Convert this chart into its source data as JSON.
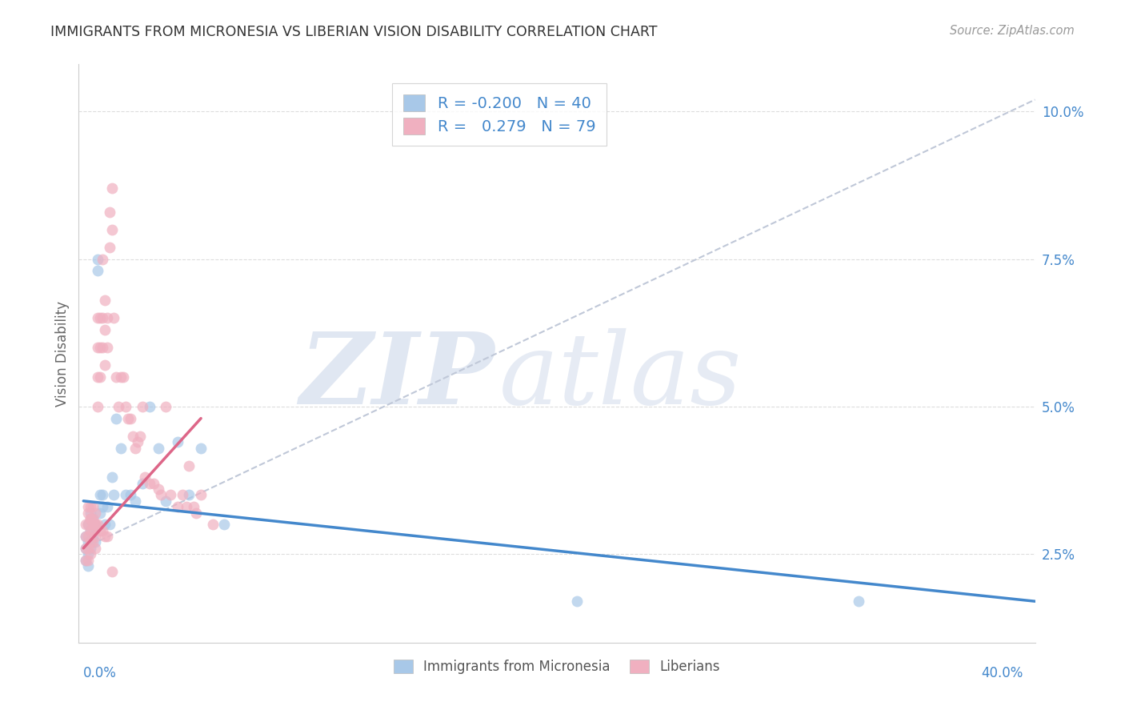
{
  "title": "IMMIGRANTS FROM MICRONESIA VS LIBERIAN VISION DISABILITY CORRELATION CHART",
  "source": "Source: ZipAtlas.com",
  "ylabel": "Vision Disability",
  "yticks": [
    "2.5%",
    "5.0%",
    "7.5%",
    "10.0%"
  ],
  "ytick_vals": [
    0.025,
    0.05,
    0.075,
    0.1
  ],
  "xlim": [
    -0.002,
    0.405
  ],
  "ylim": [
    0.01,
    0.108
  ],
  "blue_color": "#a8c8e8",
  "pink_color": "#f0b0c0",
  "blue_line_color": "#4488cc",
  "pink_line_color": "#dd6688",
  "dashed_line_color": "#c0c8d8",
  "legend_blue_label": "R = -0.200   N = 40",
  "legend_pink_label": "R =   0.279   N = 79",
  "legend_bottom_blue": "Immigrants from Micronesia",
  "legend_bottom_pink": "Liberians",
  "watermark_zip": "ZIP",
  "watermark_atlas": "atlas",
  "blue_scatter_x": [
    0.001,
    0.001,
    0.001,
    0.002,
    0.002,
    0.002,
    0.002,
    0.003,
    0.003,
    0.003,
    0.004,
    0.004,
    0.005,
    0.005,
    0.006,
    0.006,
    0.007,
    0.007,
    0.008,
    0.008,
    0.009,
    0.01,
    0.011,
    0.012,
    0.013,
    0.014,
    0.016,
    0.018,
    0.02,
    0.022,
    0.025,
    0.028,
    0.032,
    0.035,
    0.04,
    0.045,
    0.05,
    0.06,
    0.21,
    0.33
  ],
  "blue_scatter_y": [
    0.028,
    0.026,
    0.024,
    0.03,
    0.027,
    0.025,
    0.023,
    0.032,
    0.029,
    0.026,
    0.031,
    0.028,
    0.03,
    0.027,
    0.075,
    0.073,
    0.035,
    0.032,
    0.035,
    0.033,
    0.03,
    0.033,
    0.03,
    0.038,
    0.035,
    0.048,
    0.043,
    0.035,
    0.035,
    0.034,
    0.037,
    0.05,
    0.043,
    0.034,
    0.044,
    0.035,
    0.043,
    0.03,
    0.017,
    0.017
  ],
  "pink_scatter_x": [
    0.001,
    0.001,
    0.001,
    0.001,
    0.002,
    0.002,
    0.002,
    0.002,
    0.002,
    0.003,
    0.003,
    0.003,
    0.003,
    0.003,
    0.004,
    0.004,
    0.004,
    0.004,
    0.005,
    0.005,
    0.005,
    0.005,
    0.006,
    0.006,
    0.006,
    0.006,
    0.007,
    0.007,
    0.007,
    0.008,
    0.008,
    0.008,
    0.009,
    0.009,
    0.009,
    0.01,
    0.01,
    0.011,
    0.011,
    0.012,
    0.012,
    0.013,
    0.014,
    0.015,
    0.016,
    0.017,
    0.018,
    0.019,
    0.02,
    0.021,
    0.022,
    0.023,
    0.024,
    0.025,
    0.026,
    0.028,
    0.03,
    0.032,
    0.033,
    0.035,
    0.037,
    0.04,
    0.042,
    0.044,
    0.045,
    0.047,
    0.048,
    0.05,
    0.055,
    0.002,
    0.003,
    0.004,
    0.005,
    0.006,
    0.007,
    0.008,
    0.009,
    0.01,
    0.012
  ],
  "pink_scatter_y": [
    0.03,
    0.028,
    0.026,
    0.024,
    0.032,
    0.03,
    0.028,
    0.026,
    0.024,
    0.033,
    0.031,
    0.029,
    0.027,
    0.025,
    0.033,
    0.031,
    0.029,
    0.027,
    0.032,
    0.03,
    0.028,
    0.026,
    0.065,
    0.06,
    0.055,
    0.05,
    0.065,
    0.06,
    0.055,
    0.075,
    0.065,
    0.06,
    0.068,
    0.063,
    0.057,
    0.065,
    0.06,
    0.083,
    0.077,
    0.087,
    0.08,
    0.065,
    0.055,
    0.05,
    0.055,
    0.055,
    0.05,
    0.048,
    0.048,
    0.045,
    0.043,
    0.044,
    0.045,
    0.05,
    0.038,
    0.037,
    0.037,
    0.036,
    0.035,
    0.05,
    0.035,
    0.033,
    0.035,
    0.033,
    0.04,
    0.033,
    0.032,
    0.035,
    0.03,
    0.033,
    0.031,
    0.03,
    0.03,
    0.03,
    0.029,
    0.029,
    0.028,
    0.028,
    0.022
  ],
  "blue_trend_x": [
    0.0,
    0.405
  ],
  "blue_trend_y": [
    0.034,
    0.017
  ],
  "pink_trend_x": [
    0.0,
    0.05
  ],
  "pink_trend_y": [
    0.026,
    0.048
  ],
  "dashed_trend_x": [
    0.0,
    0.405
  ],
  "dashed_trend_y": [
    0.026,
    0.102
  ]
}
